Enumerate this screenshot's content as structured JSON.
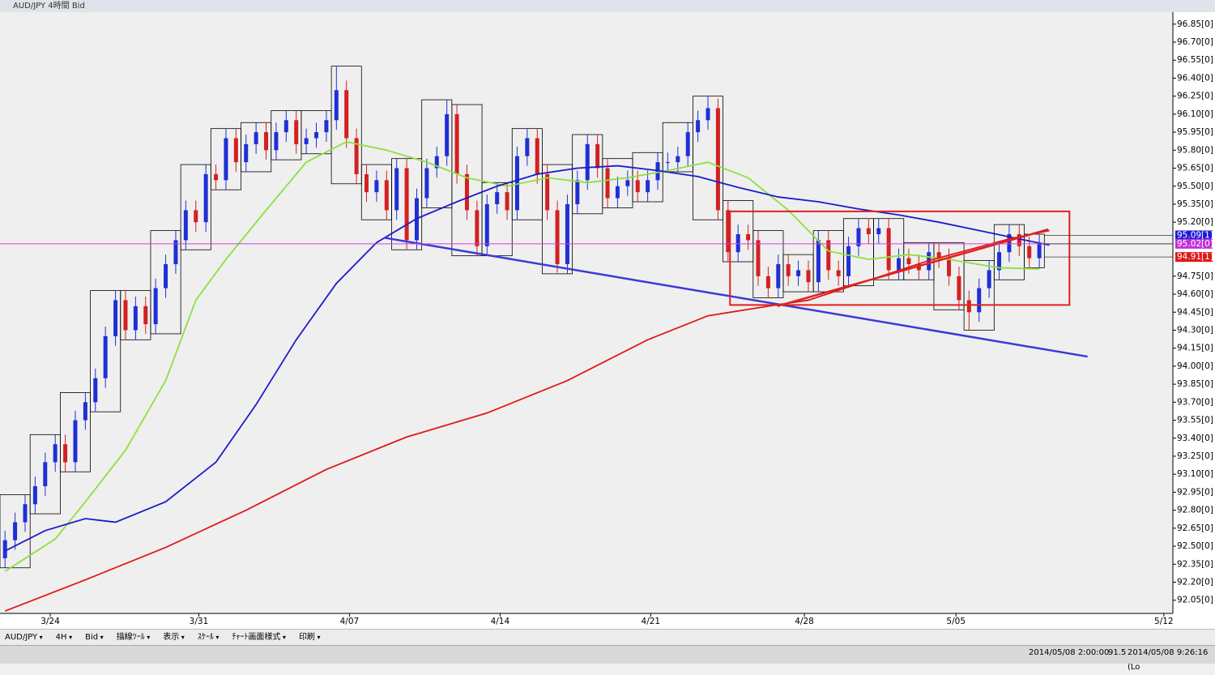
{
  "window": {
    "title": "AUD/JPY 4時間 Bid"
  },
  "toolbar": {
    "items": [
      "AUD/JPY",
      "4H",
      "Bid",
      "描線ﾂｰﾙ",
      "表示",
      "ｽｹｰﾙ",
      "ﾁｬｰﾄ画面様式",
      "印刷"
    ]
  },
  "status": {
    "items": [
      "2014/05/08 2:00:00",
      "91.5",
      "2014/05/08 9:26:16 (Lo"
    ]
  },
  "chart_data": {
    "type": "candlestick",
    "up_color": "#1f2fd6",
    "down_color": "#d42020",
    "box_color": "#000000",
    "xlim": [
      -0.5,
      116.3
    ],
    "ylim": [
      91.94,
      96.95
    ],
    "xticks": [
      {
        "value": 4.5,
        "label": "3/24"
      },
      {
        "value": 19.3,
        "label": "3/31"
      },
      {
        "value": 34.3,
        "label": "4/07"
      },
      {
        "value": 49.3,
        "label": "4/14"
      },
      {
        "value": 64.3,
        "label": "4/21"
      },
      {
        "value": 79.6,
        "label": "4/28"
      },
      {
        "value": 94.7,
        "label": "5/05"
      },
      {
        "value": 115.4,
        "label": "5/12"
      }
    ],
    "yticks": [
      {
        "value": 96.85,
        "label": "96.85[0]"
      },
      {
        "value": 96.7,
        "label": "96.70[0]"
      },
      {
        "value": 96.55,
        "label": "96.55[0]"
      },
      {
        "value": 96.4,
        "label": "96.40[0]"
      },
      {
        "value": 96.25,
        "label": "96.25[0]"
      },
      {
        "value": 96.1,
        "label": "96.10[0]"
      },
      {
        "value": 95.95,
        "label": "95.95[0]"
      },
      {
        "value": 95.8,
        "label": "95.80[0]"
      },
      {
        "value": 95.65,
        "label": "95.65[0]"
      },
      {
        "value": 95.5,
        "label": "95.50[0]"
      },
      {
        "value": 95.35,
        "label": "95.35[0]"
      },
      {
        "value": 95.2,
        "label": "95.20[0]"
      },
      {
        "value": 94.75,
        "label": "94.75[0]"
      },
      {
        "value": 94.6,
        "label": "94.60[0]"
      },
      {
        "value": 94.45,
        "label": "94.45[0]"
      },
      {
        "value": 94.3,
        "label": "94.30[0]"
      },
      {
        "value": 94.15,
        "label": "94.15[0]"
      },
      {
        "value": 94.0,
        "label": "94.00[0]"
      },
      {
        "value": 93.85,
        "label": "93.85[0]"
      },
      {
        "value": 93.7,
        "label": "93.70[0]"
      },
      {
        "value": 93.55,
        "label": "93.55[0]"
      },
      {
        "value": 93.4,
        "label": "93.40[0]"
      },
      {
        "value": 93.25,
        "label": "93.25[0]"
      },
      {
        "value": 93.1,
        "label": "93.10[0]"
      },
      {
        "value": 92.95,
        "label": "92.95[0]"
      },
      {
        "value": 92.8,
        "label": "92.80[0]"
      },
      {
        "value": 92.65,
        "label": "92.65[0]"
      },
      {
        "value": 92.5,
        "label": "92.50[0]"
      },
      {
        "value": 92.35,
        "label": "92.35[0]"
      },
      {
        "value": 92.2,
        "label": "92.20[0]"
      },
      {
        "value": 92.05,
        "label": "92.05[0]"
      }
    ],
    "open": [
      92.4,
      92.55,
      92.7,
      92.85,
      93.0,
      93.2,
      93.35,
      93.2,
      93.55,
      93.7,
      93.9,
      94.25,
      94.55,
      94.3,
      94.5,
      94.35,
      94.65,
      94.85,
      95.05,
      95.3,
      95.2,
      95.6,
      95.55,
      95.9,
      95.7,
      95.85,
      95.95,
      95.8,
      95.95,
      96.05,
      95.85,
      95.9,
      95.95,
      96.05,
      96.3,
      95.9,
      95.6,
      95.45,
      95.55,
      95.3,
      95.65,
      95.05,
      95.4,
      95.65,
      95.75,
      96.1,
      95.6,
      95.3,
      95.0,
      95.35,
      95.45,
      95.3,
      95.75,
      95.9,
      95.6,
      95.3,
      94.85,
      95.35,
      95.55,
      95.85,
      95.65,
      95.4,
      95.5,
      95.55,
      95.45,
      95.55,
      95.7,
      95.7,
      95.75,
      95.95,
      96.05,
      96.15,
      95.3,
      94.95,
      95.1,
      95.05,
      94.75,
      94.65,
      94.85,
      94.75,
      94.8,
      94.7,
      95.05,
      94.8,
      94.75,
      95.0,
      95.15,
      95.1,
      95.15,
      94.8,
      94.9,
      94.85,
      94.8,
      94.95,
      94.9,
      94.75,
      94.55,
      94.45,
      94.65,
      94.8,
      94.95,
      95.1,
      95.0,
      94.9
    ],
    "high": [
      92.63,
      92.78,
      92.93,
      93.08,
      93.28,
      93.43,
      93.43,
      93.63,
      93.78,
      93.98,
      94.33,
      94.63,
      94.63,
      94.58,
      94.58,
      94.73,
      94.93,
      95.13,
      95.38,
      95.38,
      95.68,
      95.68,
      95.98,
      95.98,
      95.93,
      96.03,
      96.03,
      96.03,
      96.13,
      96.13,
      95.98,
      96.03,
      96.13,
      96.5,
      96.38,
      95.98,
      95.68,
      95.63,
      95.63,
      95.73,
      95.73,
      95.48,
      95.73,
      95.83,
      96.22,
      96.18,
      95.68,
      95.38,
      95.43,
      95.53,
      95.53,
      95.83,
      95.98,
      95.98,
      95.68,
      95.38,
      95.43,
      95.63,
      95.93,
      95.93,
      95.73,
      95.58,
      95.63,
      95.63,
      95.63,
      95.78,
      95.78,
      95.83,
      96.03,
      96.13,
      96.25,
      96.23,
      95.38,
      95.18,
      95.18,
      95.13,
      94.83,
      94.93,
      94.93,
      94.88,
      94.88,
      95.13,
      95.13,
      94.88,
      95.08,
      95.23,
      95.23,
      95.23,
      95.23,
      94.98,
      94.98,
      94.93,
      95.03,
      95.03,
      94.98,
      94.83,
      94.63,
      94.73,
      94.88,
      95.03,
      95.18,
      95.18,
      95.08,
      95.1
    ],
    "low": [
      92.32,
      92.47,
      92.62,
      92.77,
      92.92,
      93.12,
      93.12,
      93.12,
      93.47,
      93.62,
      93.82,
      94.17,
      94.22,
      94.22,
      94.27,
      94.27,
      94.57,
      94.77,
      94.97,
      95.12,
      95.12,
      95.47,
      95.47,
      95.62,
      95.62,
      95.77,
      95.72,
      95.72,
      95.87,
      95.77,
      95.77,
      95.82,
      95.87,
      95.97,
      95.82,
      95.52,
      95.37,
      95.37,
      95.22,
      95.22,
      94.97,
      94.97,
      95.32,
      95.57,
      95.67,
      95.52,
      95.22,
      94.92,
      94.92,
      95.27,
      95.22,
      95.22,
      95.67,
      95.52,
      95.22,
      94.78,
      94.77,
      95.27,
      95.47,
      95.57,
      95.32,
      95.32,
      95.42,
      95.37,
      95.37,
      95.47,
      95.62,
      95.62,
      95.67,
      95.87,
      95.97,
      95.22,
      94.87,
      94.87,
      94.97,
      94.67,
      94.57,
      94.57,
      94.67,
      94.67,
      94.62,
      94.62,
      94.72,
      94.67,
      94.67,
      94.92,
      95.02,
      95.02,
      94.72,
      94.72,
      94.77,
      94.72,
      94.72,
      94.82,
      94.67,
      94.47,
      94.3,
      94.37,
      94.57,
      94.72,
      94.87,
      94.92,
      94.82,
      94.82
    ],
    "close": [
      92.55,
      92.7,
      92.85,
      93.0,
      93.2,
      93.35,
      93.2,
      93.55,
      93.7,
      93.9,
      94.25,
      94.55,
      94.3,
      94.5,
      94.35,
      94.65,
      94.85,
      95.05,
      95.3,
      95.2,
      95.6,
      95.55,
      95.9,
      95.7,
      95.85,
      95.95,
      95.8,
      95.95,
      96.05,
      95.85,
      95.9,
      95.95,
      96.05,
      96.3,
      95.9,
      95.6,
      95.45,
      95.55,
      95.3,
      95.65,
      95.05,
      95.4,
      95.65,
      95.75,
      96.1,
      95.6,
      95.3,
      95.0,
      95.35,
      95.45,
      95.3,
      95.75,
      95.9,
      95.6,
      95.3,
      94.85,
      95.35,
      95.55,
      95.85,
      95.65,
      95.4,
      95.5,
      95.55,
      95.45,
      95.55,
      95.7,
      95.7,
      95.75,
      95.95,
      96.05,
      96.15,
      95.3,
      94.95,
      95.1,
      95.05,
      94.75,
      94.65,
      94.85,
      94.75,
      94.8,
      94.7,
      95.05,
      94.8,
      94.75,
      95.0,
      95.15,
      95.1,
      95.15,
      94.8,
      94.9,
      94.85,
      94.8,
      94.95,
      94.9,
      94.75,
      94.55,
      94.45,
      94.65,
      94.8,
      94.95,
      95.1,
      95.0,
      94.9,
      95.02
    ],
    "moving_averages": [
      {
        "color": "#8ee03c",
        "x": [
          0,
          5,
          8,
          12,
          16,
          19,
          22,
          26,
          30,
          34,
          38,
          42,
          46,
          50,
          54,
          58,
          62,
          66,
          70,
          74,
          78,
          82,
          86,
          90,
          94,
          99,
          103
        ],
        "values": [
          92.29,
          92.56,
          92.87,
          93.3,
          93.88,
          94.55,
          94.89,
          95.3,
          95.7,
          95.87,
          95.8,
          95.7,
          95.57,
          95.5,
          95.57,
          95.53,
          95.57,
          95.63,
          95.7,
          95.57,
          95.3,
          94.96,
          94.89,
          94.93,
          94.89,
          94.82,
          94.81
        ]
      },
      {
        "color": "#1c1cc8",
        "x": [
          0,
          4,
          8,
          11,
          16,
          21,
          25,
          29,
          33,
          37,
          41,
          45,
          49,
          53,
          57,
          61,
          65,
          69,
          73,
          77,
          81,
          85,
          89,
          93,
          97,
          101,
          104
        ],
        "values": [
          92.46,
          92.63,
          92.73,
          92.7,
          92.87,
          93.2,
          93.68,
          94.22,
          94.69,
          95.03,
          95.23,
          95.37,
          95.5,
          95.6,
          95.65,
          95.67,
          95.63,
          95.58,
          95.49,
          95.41,
          95.37,
          95.31,
          95.26,
          95.2,
          95.13,
          95.06,
          95.01
        ]
      },
      {
        "color": "#e01818",
        "x": [
          0,
          8,
          16,
          24,
          32,
          40,
          48,
          56,
          64,
          70,
          76,
          80,
          84,
          88,
          92,
          96,
          100,
          104
        ],
        "values": [
          91.96,
          92.22,
          92.49,
          92.8,
          93.14,
          93.41,
          93.61,
          93.88,
          94.22,
          94.42,
          94.5,
          94.55,
          94.66,
          94.77,
          94.88,
          94.97,
          95.06,
          95.13
        ]
      }
    ],
    "drawings": [
      {
        "type": "line",
        "color": "#3a3ad4",
        "points": [
          [
            37.8,
            95.07
          ],
          [
            107.8,
            94.08
          ]
        ]
      },
      {
        "type": "rect",
        "color": "#e02020",
        "points": [
          [
            72.2,
            95.29
          ],
          [
            106.0,
            94.51
          ]
        ]
      },
      {
        "type": "line",
        "color": "#e02020",
        "points": [
          [
            76.9,
            94.5
          ],
          [
            103.9,
            95.14
          ]
        ]
      }
    ],
    "price_line": {
      "value": 95.02,
      "color": "#d040e0"
    },
    "price_tags": [
      {
        "value": 95.09,
        "label": "95.09[1]",
        "color": "#1c1cd8"
      },
      {
        "value": 95.02,
        "label": "95.02[0]",
        "color": "#c030d8"
      },
      {
        "value": 94.91,
        "label": "94.91[1]",
        "color": "#e01818"
      }
    ]
  }
}
